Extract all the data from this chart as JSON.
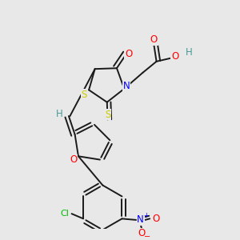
{
  "background_color": "#e8e8e8",
  "bond_color": "#1a1a1a",
  "atom_colors": {
    "S": "#cccc00",
    "N": "#0000ff",
    "O": "#ff0000",
    "Cl": "#00bb00",
    "H": "#4a9a9a",
    "C": "#1a1a1a"
  },
  "figsize": [
    3.0,
    3.0
  ],
  "dpi": 100
}
